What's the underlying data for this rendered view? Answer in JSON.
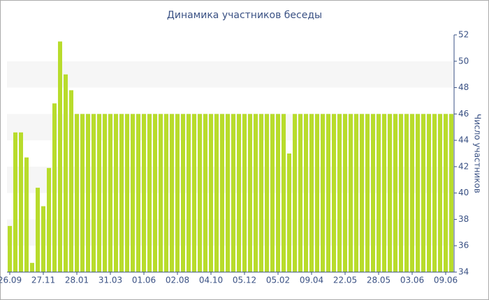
{
  "chart_data": {
    "type": "bar",
    "title": "Динамика участников беседы",
    "y_label": "Число участников",
    "categories": [
      "26.09",
      null,
      null,
      null,
      null,
      null,
      "27.11",
      null,
      null,
      null,
      null,
      null,
      "28.01",
      null,
      null,
      null,
      null,
      null,
      "31.03",
      null,
      null,
      null,
      null,
      null,
      "01.06",
      null,
      null,
      null,
      null,
      null,
      "02.08",
      null,
      null,
      null,
      null,
      null,
      "04.10",
      null,
      null,
      null,
      null,
      null,
      "05.12",
      null,
      null,
      null,
      null,
      null,
      "05.02",
      null,
      null,
      null,
      null,
      null,
      "09.04",
      null,
      null,
      null,
      null,
      null,
      "22.05",
      null,
      null,
      null,
      null,
      null,
      "28.05",
      null,
      null,
      null,
      null,
      null,
      "03.06",
      null,
      null,
      null,
      null,
      null,
      "09.06",
      null
    ],
    "values": [
      37.5,
      44.6,
      44.6,
      42.7,
      34.7,
      40.4,
      39,
      41.9,
      46.8,
      51.5,
      49,
      47.8,
      46,
      46,
      46,
      46,
      46,
      46,
      46,
      46,
      46,
      46,
      46,
      46,
      46,
      46,
      46,
      46,
      46,
      46,
      46,
      46,
      46,
      46,
      46,
      46,
      46,
      46,
      46,
      46,
      46,
      46,
      46,
      46,
      46,
      46,
      46,
      46,
      46,
      46,
      43,
      46,
      46,
      46,
      46,
      46,
      46,
      46,
      46,
      46,
      46,
      46,
      46,
      46,
      46,
      46,
      46,
      46,
      46,
      46,
      46,
      46,
      46,
      46,
      46,
      46,
      46,
      46,
      46,
      46
    ],
    "color": "#b8dc2c",
    "ylim": [
      34,
      52
    ],
    "yticks": [
      34,
      36,
      38,
      40,
      42,
      44,
      46,
      48,
      50,
      52
    ],
    "y_axis_side": "right",
    "alternate_bands": true
  }
}
